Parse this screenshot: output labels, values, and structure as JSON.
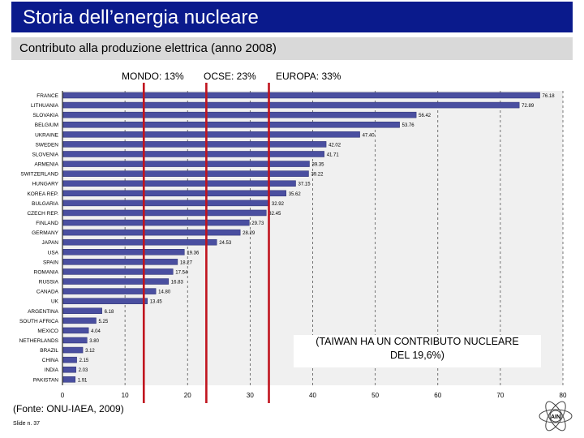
{
  "header": {
    "title": "Storia dell’energia nucleare",
    "subtitle": "Contributo alla produzione elettrica (anno 2008)"
  },
  "reference_labels": {
    "world": "MONDO: 13%",
    "oecd": "OCSE: 23%",
    "europe": "EUROPA: 33%"
  },
  "note": {
    "line1": "(TAIWAN HA UN CONTRIBUTO NUCLEARE",
    "line2": "DEL 19,6%)"
  },
  "footer": {
    "source": "(Fonte: ONU-IAEA, 2009)",
    "slide": "Slide n. 37"
  },
  "logo": {
    "text": "AIN"
  },
  "colors": {
    "title_bg": "#0a1a8c",
    "subtitle_bg": "#d9d9d9",
    "bar": "#4a4fa0",
    "reference_line": "#c0141e",
    "plot_bg": "#f0f0f0"
  },
  "chart_data": {
    "type": "bar",
    "orientation": "horizontal",
    "title": "Contributo alla produzione elettrica (anno 2008)",
    "xlabel": "",
    "ylabel": "",
    "xlim": [
      0,
      80
    ],
    "xticks": [
      0,
      10,
      20,
      30,
      40,
      50,
      60,
      70,
      80
    ],
    "xtick_labels": [
      "0",
      "10",
      "20",
      "30",
      "40",
      "50",
      "60",
      "70",
      "80"
    ],
    "grid": true,
    "categories": [
      "FRANCE",
      "LITHUANIA",
      "SLOVAKIA",
      "BELGIUM",
      "UKRAINE",
      "SWEDEN",
      "SLOVENIA",
      "ARMENIA",
      "SWITZERLAND",
      "HUNGARY",
      "KOREA REP.",
      "BULGARIA",
      "CZECH REP.",
      "FINLAND",
      "GERMANY",
      "JAPAN",
      "USA",
      "SPAIN",
      "ROMANIA",
      "RUSSIA",
      "CANADA",
      "UK",
      "ARGENTINA",
      "SOUTH AFRICA",
      "MEXICO",
      "NETHERLANDS",
      "BRAZIL",
      "CHINA",
      "INDIA",
      "PAKISTAN"
    ],
    "values": [
      76.18,
      72.89,
      56.42,
      53.76,
      47.4,
      42.02,
      41.71,
      39.35,
      39.22,
      37.15,
      35.62,
      32.92,
      32.45,
      29.73,
      28.29,
      24.53,
      19.36,
      18.27,
      17.54,
      16.83,
      14.8,
      13.45,
      6.18,
      5.25,
      4.04,
      3.8,
      3.12,
      2.15,
      2.03,
      1.91
    ],
    "value_labels": [
      "76.18",
      "72.89",
      "56.42",
      "53.76",
      "47.40",
      "42.02",
      "41.71",
      "39.35",
      "39.22",
      "37.15",
      "35.62",
      "32.92",
      "32.45",
      "29.73",
      "28.29",
      "24.53",
      "19.36",
      "18.27",
      "17.54",
      "16.83",
      "14.80",
      "13.45",
      "6.18",
      "5.25",
      "4.04",
      "3.80",
      "3.12",
      "2.15",
      "2.03",
      "1.91"
    ],
    "reference_lines": [
      {
        "name": "MONDO",
        "value": 13
      },
      {
        "name": "OCSE",
        "value": 23
      },
      {
        "name": "EUROPA",
        "value": 33
      }
    ]
  }
}
